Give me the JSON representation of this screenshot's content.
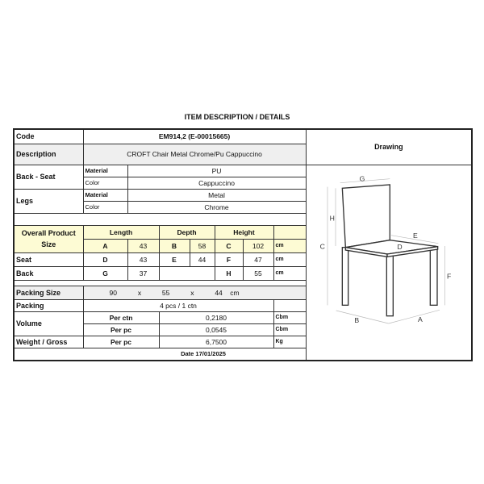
{
  "title": "ITEM DESCRIPTION / DETAILS",
  "code": {
    "label": "Code",
    "value": "EM914,2 (E-00015665)"
  },
  "description": {
    "label": "Description",
    "value": "CROFT Chair Metal Chrome/Pu Cappuccino"
  },
  "drawing_header": "Drawing",
  "back_seat": {
    "label": "Back - Seat",
    "material_label": "Material",
    "material": "PU",
    "color_label": "Color",
    "color": "Cappuccino"
  },
  "legs": {
    "label": "Legs",
    "material_label": "Material",
    "material": "Metal",
    "color_label": "Color",
    "color": "Chrome"
  },
  "overall": {
    "label": "Overall Product Size",
    "length_label": "Length",
    "depth_label": "Depth",
    "height_label": "Height",
    "A": "A",
    "A_val": "43",
    "B": "B",
    "B_val": "58",
    "C": "C",
    "C_val": "102",
    "unit": "cm"
  },
  "seat": {
    "label": "Seat",
    "D": "D",
    "D_val": "43",
    "E": "E",
    "E_val": "44",
    "F": "F",
    "F_val": "47",
    "unit": "cm"
  },
  "back": {
    "label": "Back",
    "G": "G",
    "G_val": "37",
    "H": "H",
    "H_val": "55",
    "unit": "cm"
  },
  "packing_size": {
    "label": "Packing Size",
    "l": "90",
    "x1": "x",
    "w": "55",
    "x2": "x",
    "h": "44",
    "unit": "cm"
  },
  "packing": {
    "label": "Packing",
    "value": "4 pcs / 1 ctn"
  },
  "volume": {
    "label": "Volume",
    "per_ctn_label": "Per ctn",
    "per_ctn": "0,2180",
    "per_ctn_unit": "Cbm",
    "per_pc_label": "Per pc",
    "per_pc": "0,0545",
    "per_pc_unit": "Cbm"
  },
  "weight": {
    "label": "Weight / Gross",
    "per_pc_label": "Per pc",
    "value": "6,7500",
    "unit": "Kg"
  },
  "date": "Date 17/01/2025",
  "drawing_labels": {
    "A": "A",
    "B": "B",
    "C": "C",
    "D": "D",
    "E": "E",
    "F": "F",
    "G": "G",
    "H": "H"
  }
}
